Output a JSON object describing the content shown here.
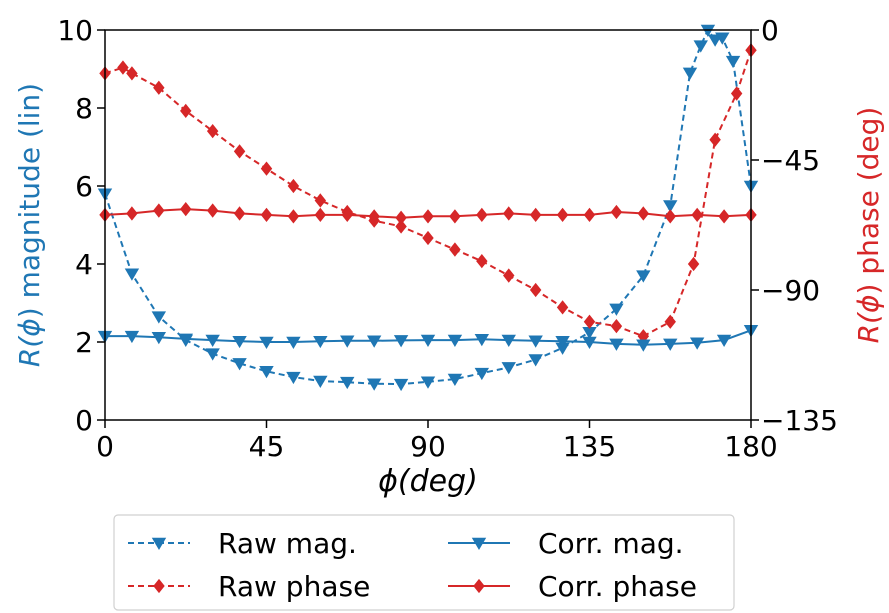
{
  "chart_data": {
    "type": "line",
    "xlabel": "ϕ(deg)",
    "ylabel_left_prefix": "R(",
    "ylabel_left_phi": "ϕ",
    "ylabel_left_suffix": ") magnitude (lin)",
    "ylabel_right_prefix": "R(",
    "ylabel_right_phi": "ϕ",
    "ylabel_right_suffix": ") phase (deg)",
    "xlim": [
      0,
      180
    ],
    "ylim_left": [
      0,
      10
    ],
    "ylim_right": [
      -135,
      0
    ],
    "x_ticks": [
      "0",
      "45",
      "90",
      "135",
      "180"
    ],
    "y_ticks_left": [
      "0",
      "2",
      "4",
      "6",
      "8",
      "10"
    ],
    "y_ticks_right": [
      "0",
      "−45",
      "−90",
      "−135"
    ],
    "grid": false,
    "legend_position": "below",
    "colors": {
      "mag": "#1f77b4",
      "phase": "#d62728"
    },
    "series": [
      {
        "name": "Raw mag.",
        "axis": "left",
        "style": "dashed",
        "marker": "triangle-down",
        "x": [
          0,
          7.5,
          15,
          22.5,
          30,
          37.5,
          45,
          52.5,
          60,
          67.5,
          75,
          82.5,
          90,
          97.5,
          105,
          112.5,
          120,
          127.5,
          135,
          142.5,
          150,
          157.5,
          163,
          166,
          168,
          170,
          172,
          175,
          180
        ],
        "y": [
          5.8,
          3.75,
          2.65,
          2.05,
          1.7,
          1.45,
          1.25,
          1.1,
          1.0,
          0.97,
          0.93,
          0.92,
          0.98,
          1.05,
          1.2,
          1.35,
          1.55,
          1.85,
          2.25,
          2.85,
          3.7,
          5.5,
          8.9,
          9.6,
          10.0,
          9.75,
          9.8,
          9.2,
          6.0
        ]
      },
      {
        "name": "Raw phase",
        "axis": "right",
        "style": "dashed",
        "marker": "diamond",
        "x": [
          0,
          5,
          7.5,
          15,
          22.5,
          30,
          37.5,
          45,
          52.5,
          60,
          67.5,
          75,
          82.5,
          90,
          97.5,
          105,
          112.5,
          120,
          127.5,
          135,
          142.5,
          150,
          157.5,
          164,
          170,
          176,
          180
        ],
        "y": [
          -15,
          -13,
          -15,
          -20,
          -28,
          -35,
          -42,
          -48,
          -54,
          -59,
          -63,
          -66,
          -68,
          -72,
          -76,
          -80,
          -85,
          -90,
          -96,
          -101,
          -102.5,
          -106,
          -101,
          -81,
          -38,
          -22,
          -7
        ]
      },
      {
        "name": "Corr. mag.",
        "axis": "left",
        "style": "solid",
        "marker": "triangle-down",
        "x": [
          0,
          7.5,
          15,
          22.5,
          30,
          37.5,
          45,
          52.5,
          60,
          67.5,
          75,
          82.5,
          90,
          97.5,
          105,
          112.5,
          120,
          127.5,
          135,
          142.5,
          150,
          157.5,
          165,
          172.5,
          180
        ],
        "y": [
          2.15,
          2.15,
          2.12,
          2.08,
          2.05,
          2.02,
          2.0,
          2.0,
          2.02,
          2.03,
          2.03,
          2.04,
          2.05,
          2.05,
          2.07,
          2.05,
          2.03,
          2.02,
          2.0,
          1.95,
          1.93,
          1.95,
          1.98,
          2.05,
          2.3
        ]
      },
      {
        "name": "Corr. phase",
        "axis": "right",
        "style": "solid",
        "marker": "diamond",
        "x": [
          0,
          7.5,
          15,
          22.5,
          30,
          37.5,
          45,
          52.5,
          60,
          67.5,
          75,
          82.5,
          90,
          97.5,
          105,
          112.5,
          120,
          127.5,
          135,
          142.5,
          150,
          157.5,
          165,
          172.5,
          180
        ],
        "y": [
          -64,
          -63.5,
          -62.5,
          -62,
          -62.5,
          -63.5,
          -64,
          -64.5,
          -64,
          -64,
          -64.5,
          -65,
          -64.5,
          -64.5,
          -64,
          -63.5,
          -64,
          -64,
          -64,
          -63,
          -63.5,
          -64.5,
          -64,
          -64.5,
          -64
        ]
      }
    ]
  }
}
